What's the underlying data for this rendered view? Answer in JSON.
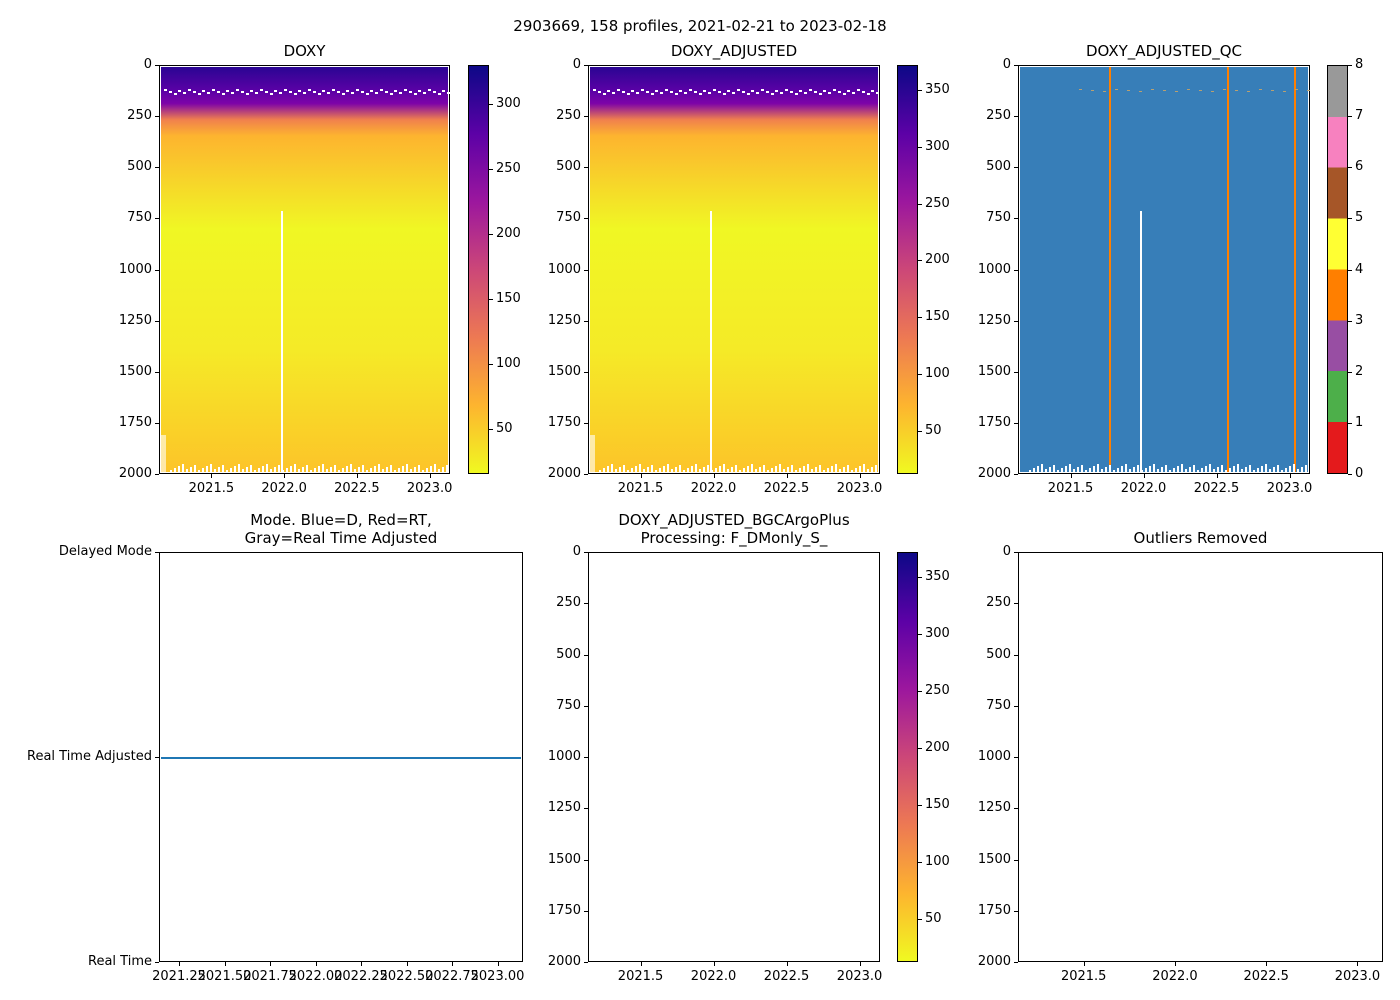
{
  "suptitle": "2903669, 158 profiles, 2021-02-21 to 2023-02-18",
  "chart_data": [
    {
      "type": "heatmap",
      "title": "DOXY",
      "xlim": [
        2021.14,
        2023.14
      ],
      "ylim": [
        2000,
        0
      ],
      "xticks": [
        2021.5,
        2022.0,
        2022.5,
        2023.0
      ],
      "xtick_labels": [
        "2021.5",
        "2022.0",
        "2022.5",
        "2023.0"
      ],
      "yticks": [
        0,
        250,
        500,
        750,
        1000,
        1250,
        1500,
        1750,
        2000
      ],
      "ytick_labels": [
        "0",
        "250",
        "500",
        "750",
        "1000",
        "1250",
        "1500",
        "1750",
        "2000"
      ],
      "colorbar": {
        "cmap": "plasma_r",
        "range": [
          15,
          330
        ],
        "ticks": [
          50,
          100,
          150,
          200,
          250,
          300
        ],
        "tick_labels": [
          "50",
          "100",
          "150",
          "200",
          "250",
          "300"
        ]
      },
      "gap_profile_x": 2021.97,
      "gap_profile_top_depth": 710
    },
    {
      "type": "heatmap",
      "title": "DOXY_ADJUSTED",
      "xlim": [
        2021.14,
        2023.14
      ],
      "ylim": [
        2000,
        0
      ],
      "xticks": [
        2021.5,
        2022.0,
        2022.5,
        2023.0
      ],
      "xtick_labels": [
        "2021.5",
        "2022.0",
        "2022.5",
        "2023.0"
      ],
      "yticks": [
        0,
        250,
        500,
        750,
        1000,
        1250,
        1500,
        1750,
        2000
      ],
      "ytick_labels": [
        "0",
        "250",
        "500",
        "750",
        "1000",
        "1250",
        "1500",
        "1750",
        "2000"
      ],
      "colorbar": {
        "cmap": "plasma_r",
        "range": [
          12,
          372
        ],
        "ticks": [
          50,
          100,
          150,
          200,
          250,
          300,
          350
        ],
        "tick_labels": [
          "50",
          "100",
          "150",
          "200",
          "250",
          "300",
          "350"
        ]
      },
      "gap_profile_x": 2021.97,
      "gap_profile_top_depth": 710
    },
    {
      "type": "heatmap",
      "title": "DOXY_ADJUSTED_QC",
      "xlim": [
        2021.14,
        2023.14
      ],
      "ylim": [
        2000,
        0
      ],
      "xticks": [
        2021.5,
        2022.0,
        2022.5,
        2023.0
      ],
      "xtick_labels": [
        "2021.5",
        "2022.0",
        "2022.5",
        "2023.0"
      ],
      "yticks": [
        0,
        250,
        500,
        750,
        1000,
        1250,
        1500,
        1750,
        2000
      ],
      "ytick_labels": [
        "0",
        "250",
        "500",
        "750",
        "1000",
        "1250",
        "1500",
        "1750",
        "2000"
      ],
      "colorbar": {
        "cmap": "qc",
        "range": [
          0,
          8
        ],
        "ticks": [
          0,
          1,
          2,
          3,
          4,
          5,
          6,
          7,
          8
        ],
        "tick_labels": [
          "0",
          "1",
          "2",
          "3",
          "4",
          "5",
          "6",
          "7",
          "8"
        ]
      },
      "dominant_qc": 1,
      "qc4_profiles_x": [
        2021.76,
        2022.57,
        2023.03
      ],
      "gap_profile_x": 2021.97,
      "gap_profile_top_depth": 710
    },
    {
      "type": "line",
      "title": "Mode. Blue=D, Red=RT,\nGray=Real Time Adjusted",
      "xlim": [
        2021.14,
        2023.14
      ],
      "ylim": [
        0,
        2
      ],
      "xticks": [
        2021.25,
        2021.5,
        2021.75,
        2022.0,
        2022.25,
        2022.5,
        2022.75,
        2023.0
      ],
      "xtick_labels": [
        "2021.25",
        "2021.50",
        "2021.75",
        "2022.00",
        "2022.25",
        "2022.50",
        "2022.75",
        "2023.00"
      ],
      "yticks": [
        2,
        1,
        0
      ],
      "ytick_labels": [
        "Delayed Mode",
        "Real Time Adjusted",
        "Real Time"
      ],
      "series": [
        {
          "name": "mode",
          "y": 1,
          "color": "#1f77b4"
        }
      ]
    },
    {
      "type": "heatmap",
      "title": "DOXY_ADJUSTED_BGCArgoPlus\nProcessing: F_DMonly_S_",
      "xlim": [
        2021.14,
        2023.14
      ],
      "ylim": [
        2000,
        0
      ],
      "xticks": [
        2021.5,
        2022.0,
        2022.5,
        2023.0
      ],
      "xtick_labels": [
        "2021.5",
        "2022.0",
        "2022.5",
        "2023.0"
      ],
      "yticks": [
        0,
        250,
        500,
        750,
        1000,
        1250,
        1500,
        1750,
        2000
      ],
      "ytick_labels": [
        "0",
        "250",
        "500",
        "750",
        "1000",
        "1250",
        "1500",
        "1750",
        "2000"
      ],
      "colorbar": {
        "cmap": "plasma_r",
        "range": [
          12,
          372
        ],
        "ticks": [
          50,
          100,
          150,
          200,
          250,
          300,
          350
        ],
        "tick_labels": [
          "50",
          "100",
          "150",
          "200",
          "250",
          "300",
          "350"
        ]
      },
      "empty": true
    },
    {
      "type": "scatter",
      "title": "Outliers Removed",
      "xlim": [
        2021.14,
        2023.14
      ],
      "ylim": [
        2000,
        0
      ],
      "xticks": [
        2021.5,
        2022.0,
        2022.5,
        2023.0
      ],
      "xtick_labels": [
        "2021.5",
        "2022.0",
        "2022.5",
        "2023.0"
      ],
      "yticks": [
        0,
        250,
        500,
        750,
        1000,
        1250,
        1500,
        1750,
        2000
      ],
      "ytick_labels": [
        "0",
        "250",
        "500",
        "750",
        "1000",
        "1250",
        "1500",
        "1750",
        "2000"
      ],
      "empty": true
    }
  ]
}
